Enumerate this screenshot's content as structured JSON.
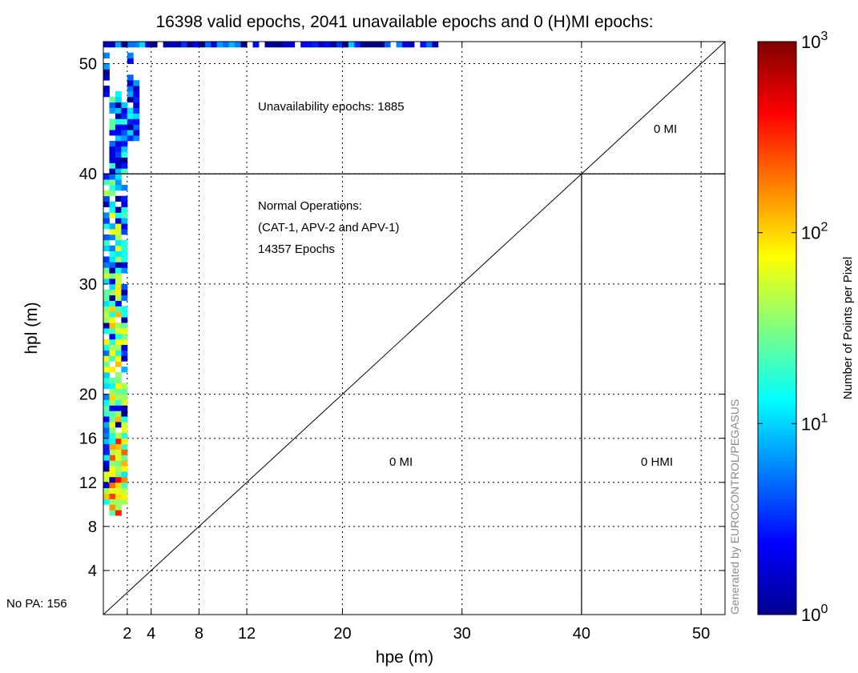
{
  "chart_data": {
    "type": "heatmap",
    "title": "16398 valid epochs, 2041 unavailable epochs and 0 (H)MI epochs:",
    "xlabel": "hpe (m)",
    "ylabel": "hpl (m)",
    "xlim": [
      0,
      52
    ],
    "ylim": [
      0,
      52
    ],
    "x_ticks": [
      2,
      4,
      8,
      12,
      20,
      30,
      40,
      50
    ],
    "y_ticks": [
      4,
      8,
      12,
      16,
      20,
      30,
      40,
      50
    ],
    "grid": true,
    "bin_size": 0.5,
    "alarm_limit": 40,
    "colorbar": {
      "label": "Number of Points per Pixel",
      "scale": "log",
      "range": [
        1,
        1000
      ],
      "tick_base": "10",
      "tick_exponents": [
        "0",
        "1",
        "2",
        "3"
      ],
      "colormap": "jet"
    },
    "annotations": {
      "unavailability": "Unavailability epochs: 1885",
      "normal_ops_line1": "Normal Operations:",
      "normal_ops_line2": "(CAT-1, APV-2 and APV-1)",
      "normal_ops_line3": "14357 Epochs",
      "mi_upper": "0 MI",
      "mi_lower": "0 MI",
      "hmi": "0 HMI",
      "no_pa": "No PA: 156",
      "generated_by": "Generated by EUROCONTROL/PEGASUS"
    },
    "regions": [
      {
        "x": [
          0.0,
          0.5
        ],
        "y": [
          10,
          14
        ],
        "log_count": 1.4
      },
      {
        "x": [
          0.5,
          1.0
        ],
        "y": [
          9,
          15
        ],
        "log_count": 1.9
      },
      {
        "x": [
          1.0,
          1.5
        ],
        "y": [
          9,
          17
        ],
        "log_count": 2.1
      },
      {
        "x": [
          1.5,
          2.0
        ],
        "y": [
          10,
          16
        ],
        "log_count": 1.7
      },
      {
        "x": [
          0.0,
          0.5
        ],
        "y": [
          14,
          22
        ],
        "log_count": 1.0
      },
      {
        "x": [
          0.5,
          1.0
        ],
        "y": [
          15,
          22
        ],
        "log_count": 1.6
      },
      {
        "x": [
          1.0,
          1.5
        ],
        "y": [
          16,
          22
        ],
        "log_count": 1.8
      },
      {
        "x": [
          1.5,
          2.0
        ],
        "y": [
          16,
          21
        ],
        "log_count": 1.5
      },
      {
        "x": [
          0.0,
          0.5
        ],
        "y": [
          22,
          30
        ],
        "log_count": 1.3
      },
      {
        "x": [
          0.5,
          1.0
        ],
        "y": [
          22,
          31
        ],
        "log_count": 1.6
      },
      {
        "x": [
          1.0,
          1.5
        ],
        "y": [
          22,
          31
        ],
        "log_count": 1.7
      },
      {
        "x": [
          1.5,
          2.0
        ],
        "y": [
          22,
          30
        ],
        "log_count": 1.2
      },
      {
        "x": [
          0.0,
          0.5
        ],
        "y": [
          30,
          40
        ],
        "log_count": 1.1
      },
      {
        "x": [
          0.5,
          1.0
        ],
        "y": [
          30,
          40
        ],
        "log_count": 1.3
      },
      {
        "x": [
          1.0,
          1.5
        ],
        "y": [
          30,
          40
        ],
        "log_count": 1.2
      },
      {
        "x": [
          1.5,
          2.0
        ],
        "y": [
          31,
          39
        ],
        "log_count": 0.9
      },
      {
        "x": [
          0.5,
          1.0
        ],
        "y": [
          40,
          47
        ],
        "log_count": 0.9
      },
      {
        "x": [
          1.0,
          1.5
        ],
        "y": [
          40,
          48
        ],
        "log_count": 0.8
      },
      {
        "x": [
          1.5,
          2.0
        ],
        "y": [
          40,
          47
        ],
        "log_count": 0.7
      },
      {
        "x": [
          2.0,
          3.0
        ],
        "y": [
          43,
          49
        ],
        "log_count": 0.5
      },
      {
        "x": [
          0.0,
          0.5
        ],
        "y": [
          47,
          51
        ],
        "log_count": 0.3
      },
      {
        "x": [
          2.0,
          2.5
        ],
        "y": [
          50,
          51
        ],
        "log_count": 0.4
      },
      {
        "x": [
          0.0,
          28.0
        ],
        "y": [
          51.5,
          52
        ],
        "log_count": 0.4
      }
    ]
  }
}
